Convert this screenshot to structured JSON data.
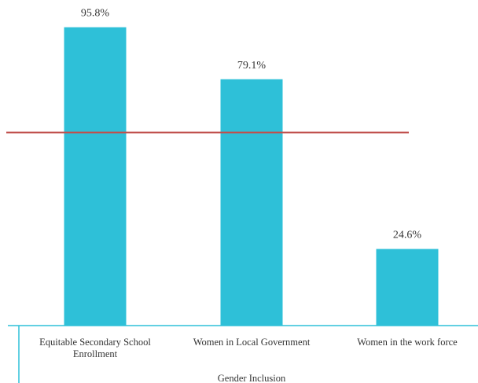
{
  "chart_data": {
    "type": "bar",
    "categories": [
      [
        "Equitable Secondary School",
        "Enrollment"
      ],
      [
        "Women in Local Government"
      ],
      [
        "Women in the work force"
      ]
    ],
    "values": [
      95.8,
      79.1,
      24.6
    ],
    "value_labels": [
      "95.8%",
      "79.1%",
      "24.6%"
    ],
    "group_label": "Gender Inclusion",
    "reference_line": 62,
    "ylim": [
      0,
      100
    ],
    "grid": false,
    "legend": "none",
    "colors": {
      "bar": "#2EC0D8",
      "reference_line": "#C0504D",
      "axis": "#2EC0D8"
    }
  }
}
